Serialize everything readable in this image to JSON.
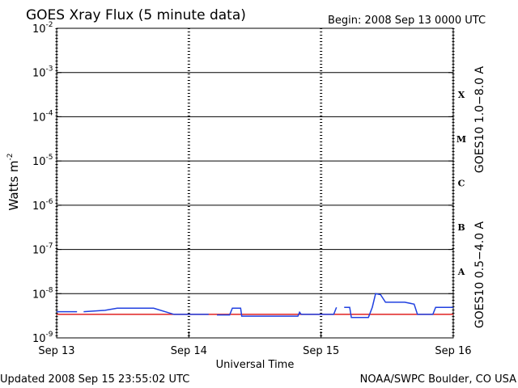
{
  "chart_data": {
    "type": "line",
    "title": "GOES Xray Flux (5 minute data)",
    "begin": "Begin:  2008 Sep 13 0000 UTC",
    "xlabel": "Universal Time",
    "ylabel": "Watts m",
    "ylabel_exponent": "-2",
    "updated": "Updated 2008 Sep 15 23:55:02 UTC",
    "source": "NOAA/SWPC Boulder, CO USA",
    "log_y": true,
    "grid": true,
    "xlim": [
      0,
      72
    ],
    "xticks": [
      {
        "value": 0,
        "label": "Sep 13"
      },
      {
        "value": 24,
        "label": "Sep 14"
      },
      {
        "value": 48,
        "label": "Sep 15"
      },
      {
        "value": 72,
        "label": "Sep 16"
      }
    ],
    "ylim": [
      1e-09,
      0.01
    ],
    "yticks": [
      {
        "value": 1e-09,
        "label": "10",
        "exponent": "-9"
      },
      {
        "value": 1e-08,
        "label": "10",
        "exponent": "-8"
      },
      {
        "value": 1e-07,
        "label": "10",
        "exponent": "-7"
      },
      {
        "value": 1e-06,
        "label": "10",
        "exponent": "-6"
      },
      {
        "value": 1e-05,
        "label": "10",
        "exponent": "-5"
      },
      {
        "value": 0.0001,
        "label": "10",
        "exponent": "-4"
      },
      {
        "value": 0.001,
        "label": "10",
        "exponent": "-3"
      },
      {
        "value": 0.01,
        "label": "10",
        "exponent": "-2"
      }
    ],
    "flare_classes": [
      "A",
      "B",
      "C",
      "M",
      "X"
    ],
    "series": [
      {
        "name": "GOES10 1.0−8.0 A",
        "color": "#e02020",
        "x": [
          0,
          72
        ],
        "values": [
          3.4e-09,
          3.4e-09
        ]
      },
      {
        "name": "GOES10 0.5−4.0 A",
        "color": "#2040e0",
        "x": [
          0,
          3.7,
          4.5,
          4.9,
          8.8,
          11,
          17.6,
          21.3,
          27.6,
          28.5,
          29.1,
          31.4,
          31.9,
          33.4,
          33.6,
          43.8,
          44.1,
          44.4,
          50.3,
          50.8,
          51.5,
          52.2,
          53.2,
          53.5,
          56.6,
          57.3,
          57.9,
          58.8,
          59.7,
          63.2,
          64.9,
          65.5,
          68.3,
          68.8,
          72
        ],
        "values": [
          3.9e-09,
          3.9e-09,
          null,
          3.9e-09,
          4.2e-09,
          4.7e-09,
          4.7e-09,
          3.4e-09,
          3.4e-09,
          null,
          3.3e-09,
          3.3e-09,
          4.7e-09,
          4.7e-09,
          3.1e-09,
          3.1e-09,
          3.8e-09,
          3.4e-09,
          3.4e-09,
          4.9e-09,
          null,
          4.9e-09,
          4.9e-09,
          2.9e-09,
          2.9e-09,
          4.9e-09,
          1e-08,
          9.5e-09,
          6.4e-09,
          6.4e-09,
          5.8e-09,
          3.4e-09,
          3.4e-09,
          4.9e-09,
          4.9e-09
        ]
      }
    ]
  }
}
